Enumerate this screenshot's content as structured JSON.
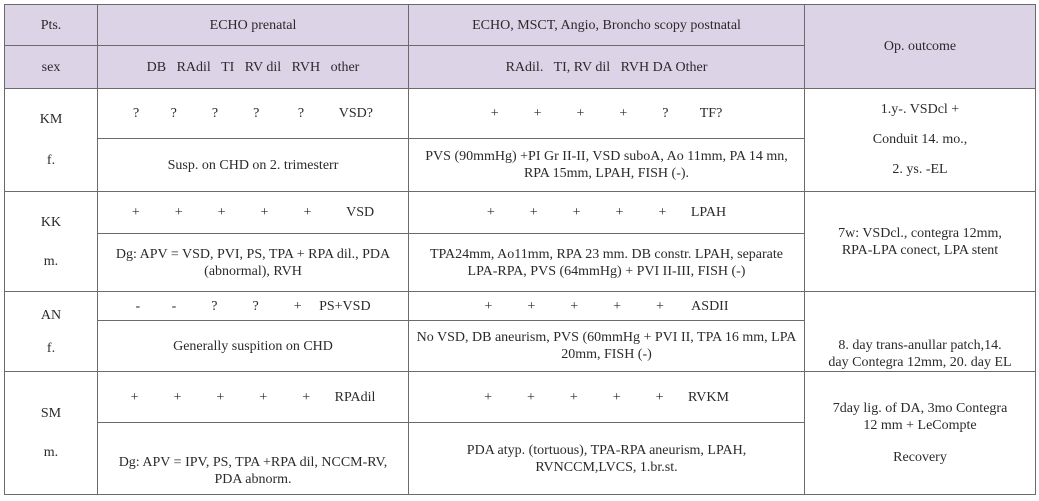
{
  "header": {
    "pts_label": "Pts.",
    "sex_label": "sex",
    "prenatal_title": "ECHO prenatal",
    "prenatal_sub": "DB   RAdil   TI   RV dil   RVH   other",
    "postnatal_title": "ECHO, MSCT, Angio, Broncho scopy postnatal",
    "postnatal_sub": "RAdil.   TI, RV dil   RVH DA Other",
    "outcome_title": "Op. outcome"
  },
  "rows": [
    {
      "patient": "KM",
      "sex": "f.",
      "prenatal_marks": "?         ?          ?          ?           ?          VSD?",
      "prenatal_note": "Susp. on CHD on 2. trimesterr",
      "postnatal_marks": "+          +          +          +          ?         TF?",
      "postnatal_note": "PVS (90mmHg) +PI Gr II-II, VSD suboA, Ao 11mm, PA 14 mn, RPA 15mm, LPAH, FISH (-).",
      "outcome": [
        "1.y-. VSDcl +",
        "Conduit 14. mo.,",
        "2. ys. -EL"
      ]
    },
    {
      "patient": "KK",
      "sex": "m.",
      "prenatal_marks": "+          +          +          +          +          VSD",
      "prenatal_note": "Dg: APV = VSD, PVI, PS, TPA + RPA dil., PDA (abnormal), RVH",
      "postnatal_marks": "+          +          +          +          +       LPAH",
      "postnatal_note": "TPA24mm, Ao11mm, RPA 23 mm. DB constr. LPAH, separate LPA-RPA, PVS (64mmHg) + PVI II-III, FISH (-)",
      "outcome": [
        "7w: VSDcl., contegra 12mm,",
        "RPA-LPA conect, LPA stent"
      ]
    },
    {
      "patient": "AN",
      "sex": "f.",
      "prenatal_marks": "-         -          ?          ?          +     PS+VSD",
      "prenatal_note": "Generally suspition on CHD",
      "postnatal_marks": "+          +          +          +          +        ASDII",
      "postnatal_note": "No VSD, DB aneurism, PVS (60mmHg + PVI II, TPA 16 mm, LPA 20mm, FISH (-)",
      "outcome": [
        "8. day trans-anullar patch,14.",
        "day Contegra 12mm, 20. day EL"
      ]
    },
    {
      "patient": "SM",
      "sex": "m.",
      "prenatal_marks": "+          +          +          +          +       RPAdil",
      "prenatal_note": "Dg: APV = IPV, PS, TPA +RPA dil, NCCM-RV, PDA abnorm.",
      "postnatal_marks": "+          +          +          +          +       RVKM",
      "postnatal_note": "PDA atyp. (tortuous), TPA-RPA aneurism, LPAH, RVNCCM,LVCS, 1.br.st.",
      "outcome": [
        "7day lig. of DA, 3mo Contegra",
        "12 mm + LeCompte",
        "Recovery"
      ]
    }
  ]
}
